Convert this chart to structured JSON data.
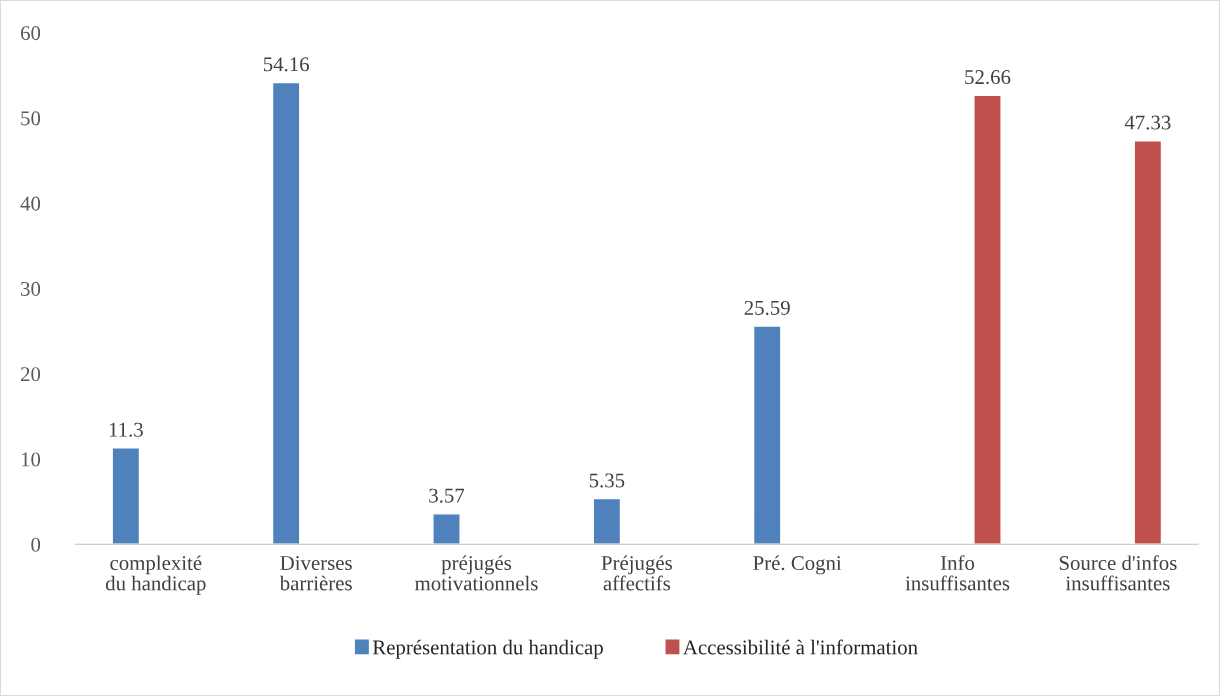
{
  "chart_data": {
    "type": "bar",
    "categories": [
      "complexité du handicap",
      "Diverses barrières",
      "préjugés motivationnels",
      "Préjugés affectifs",
      "Pré. Cogni",
      "Info insuffisantes",
      "Source d'infos insuffisantes"
    ],
    "series": [
      {
        "name": "Représentation du handicap",
        "color": "#4f81bd",
        "values": [
          11.3,
          54.16,
          3.57,
          5.35,
          25.59,
          null,
          null
        ]
      },
      {
        "name": "Accessibilité à l'information",
        "color": "#c0504d",
        "values": [
          null,
          null,
          null,
          null,
          null,
          52.66,
          47.33
        ]
      }
    ],
    "ylim": [
      0,
      60
    ],
    "yticks": [
      0,
      10,
      20,
      30,
      40,
      50,
      60
    ],
    "data_labels": true,
    "legend": "bottom",
    "grid": false
  }
}
